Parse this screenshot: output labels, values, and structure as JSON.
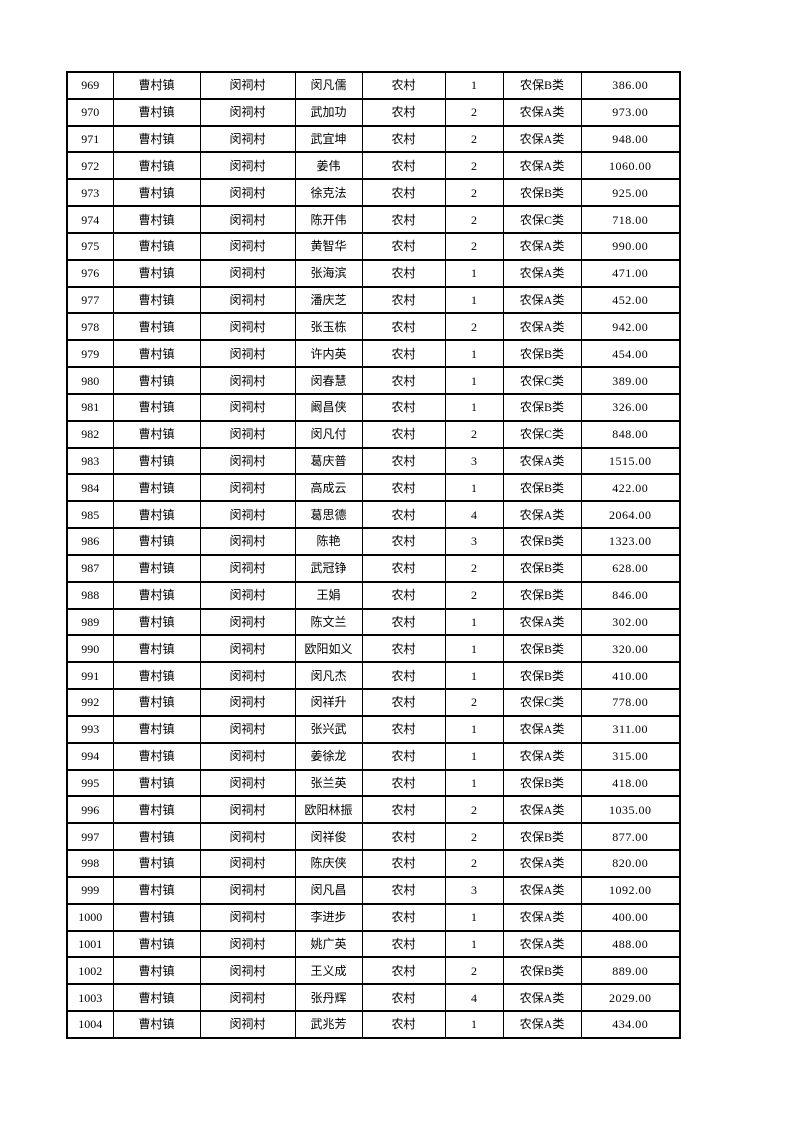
{
  "document": {
    "background_color": "#ffffff",
    "text_color": "#000000",
    "grid_color": "#000000"
  },
  "table": {
    "rows": [
      [
        "969",
        "曹村镇",
        "闵祠村",
        "闵凡儒",
        "农村",
        "1",
        "农保B类",
        "386.00"
      ],
      [
        "970",
        "曹村镇",
        "闵祠村",
        "武加功",
        "农村",
        "2",
        "农保A类",
        "973.00"
      ],
      [
        "971",
        "曹村镇",
        "闵祠村",
        "武宜坤",
        "农村",
        "2",
        "农保A类",
        "948.00"
      ],
      [
        "972",
        "曹村镇",
        "闵祠村",
        "姜伟",
        "农村",
        "2",
        "农保A类",
        "1060.00"
      ],
      [
        "973",
        "曹村镇",
        "闵祠村",
        "徐克法",
        "农村",
        "2",
        "农保B类",
        "925.00"
      ],
      [
        "974",
        "曹村镇",
        "闵祠村",
        "陈开伟",
        "农村",
        "2",
        "农保C类",
        "718.00"
      ],
      [
        "975",
        "曹村镇",
        "闵祠村",
        "黄智华",
        "农村",
        "2",
        "农保A类",
        "990.00"
      ],
      [
        "976",
        "曹村镇",
        "闵祠村",
        "张海滨",
        "农村",
        "1",
        "农保A类",
        "471.00"
      ],
      [
        "977",
        "曹村镇",
        "闵祠村",
        "潘庆芝",
        "农村",
        "1",
        "农保A类",
        "452.00"
      ],
      [
        "978",
        "曹村镇",
        "闵祠村",
        "张玉栋",
        "农村",
        "2",
        "农保A类",
        "942.00"
      ],
      [
        "979",
        "曹村镇",
        "闵祠村",
        "许内英",
        "农村",
        "1",
        "农保B类",
        "454.00"
      ],
      [
        "980",
        "曹村镇",
        "闵祠村",
        "闵春慧",
        "农村",
        "1",
        "农保C类",
        "389.00"
      ],
      [
        "981",
        "曹村镇",
        "闵祠村",
        "阚昌侠",
        "农村",
        "1",
        "农保B类",
        "326.00"
      ],
      [
        "982",
        "曹村镇",
        "闵祠村",
        "闵凡付",
        "农村",
        "2",
        "农保C类",
        "848.00"
      ],
      [
        "983",
        "曹村镇",
        "闵祠村",
        "葛庆普",
        "农村",
        "3",
        "农保A类",
        "1515.00"
      ],
      [
        "984",
        "曹村镇",
        "闵祠村",
        "高成云",
        "农村",
        "1",
        "农保B类",
        "422.00"
      ],
      [
        "985",
        "曹村镇",
        "闵祠村",
        "葛思德",
        "农村",
        "4",
        "农保A类",
        "2064.00"
      ],
      [
        "986",
        "曹村镇",
        "闵祠村",
        "陈艳",
        "农村",
        "3",
        "农保B类",
        "1323.00"
      ],
      [
        "987",
        "曹村镇",
        "闵祠村",
        "武冠铮",
        "农村",
        "2",
        "农保B类",
        "628.00"
      ],
      [
        "988",
        "曹村镇",
        "闵祠村",
        "王娟",
        "农村",
        "2",
        "农保B类",
        "846.00"
      ],
      [
        "989",
        "曹村镇",
        "闵祠村",
        "陈文兰",
        "农村",
        "1",
        "农保A类",
        "302.00"
      ],
      [
        "990",
        "曹村镇",
        "闵祠村",
        "欧阳如义",
        "农村",
        "1",
        "农保B类",
        "320.00"
      ],
      [
        "991",
        "曹村镇",
        "闵祠村",
        "闵凡杰",
        "农村",
        "1",
        "农保B类",
        "410.00"
      ],
      [
        "992",
        "曹村镇",
        "闵祠村",
        "闵祥升",
        "农村",
        "2",
        "农保C类",
        "778.00"
      ],
      [
        "993",
        "曹村镇",
        "闵祠村",
        "张兴武",
        "农村",
        "1",
        "农保A类",
        "311.00"
      ],
      [
        "994",
        "曹村镇",
        "闵祠村",
        "姜徐龙",
        "农村",
        "1",
        "农保A类",
        "315.00"
      ],
      [
        "995",
        "曹村镇",
        "闵祠村",
        "张兰英",
        "农村",
        "1",
        "农保B类",
        "418.00"
      ],
      [
        "996",
        "曹村镇",
        "闵祠村",
        "欧阳林振",
        "农村",
        "2",
        "农保A类",
        "1035.00"
      ],
      [
        "997",
        "曹村镇",
        "闵祠村",
        "闵祥俊",
        "农村",
        "2",
        "农保B类",
        "877.00"
      ],
      [
        "998",
        "曹村镇",
        "闵祠村",
        "陈庆侠",
        "农村",
        "2",
        "农保A类",
        "820.00"
      ],
      [
        "999",
        "曹村镇",
        "闵祠村",
        "闵凡昌",
        "农村",
        "3",
        "农保A类",
        "1092.00"
      ],
      [
        "1000",
        "曹村镇",
        "闵祠村",
        "李进步",
        "农村",
        "1",
        "农保A类",
        "400.00"
      ],
      [
        "1001",
        "曹村镇",
        "闵祠村",
        "姚广英",
        "农村",
        "1",
        "农保A类",
        "488.00"
      ],
      [
        "1002",
        "曹村镇",
        "闵祠村",
        "王义成",
        "农村",
        "2",
        "农保B类",
        "889.00"
      ],
      [
        "1003",
        "曹村镇",
        "闵祠村",
        "张丹辉",
        "农村",
        "4",
        "农保A类",
        "2029.00"
      ],
      [
        "1004",
        "曹村镇",
        "闵祠村",
        "武兆芳",
        "农村",
        "1",
        "农保A类",
        "434.00"
      ]
    ]
  }
}
